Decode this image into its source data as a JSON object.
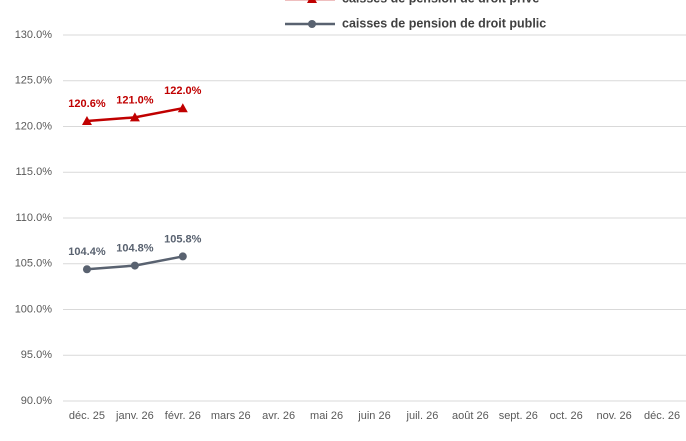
{
  "chart_data": {
    "type": "line",
    "categories": [
      "déc. 25",
      "janv. 26",
      "févr. 26",
      "mars 26",
      "avr. 26",
      "mai 26",
      "juin 26",
      "juil. 26",
      "août 26",
      "sept. 26",
      "oct. 26",
      "nov. 26",
      "déc. 26"
    ],
    "series": [
      {
        "name": "caisses de pension de droit privé",
        "color": "#c00000",
        "marker": "triangle",
        "values": [
          120.6,
          121.0,
          122.0,
          null,
          null,
          null,
          null,
          null,
          null,
          null,
          null,
          null,
          null
        ],
        "value_labels": [
          "120.6%",
          "121.0%",
          "122.0%",
          null,
          null,
          null,
          null,
          null,
          null,
          null,
          null,
          null,
          null
        ]
      },
      {
        "name": "caisses de pension de droit public",
        "color": "#596270",
        "marker": "circle",
        "values": [
          104.4,
          104.8,
          105.8,
          null,
          null,
          null,
          null,
          null,
          null,
          null,
          null,
          null,
          null
        ],
        "value_labels": [
          "104.4%",
          "104.8%",
          "105.8%",
          null,
          null,
          null,
          null,
          null,
          null,
          null,
          null,
          null,
          null
        ]
      }
    ],
    "ylim": [
      90,
      130
    ],
    "yticks": [
      {
        "value": 90,
        "label": "90.0%"
      },
      {
        "value": 95,
        "label": "95.0%"
      },
      {
        "value": 100,
        "label": "100.0%"
      },
      {
        "value": 105,
        "label": "105.0%"
      },
      {
        "value": 110,
        "label": "110.0%"
      },
      {
        "value": 115,
        "label": "115.0%"
      },
      {
        "value": 120,
        "label": "120.0%"
      },
      {
        "value": 125,
        "label": "125.0%"
      },
      {
        "value": 130,
        "label": "130.0%"
      }
    ],
    "grid": true,
    "legend": "top"
  }
}
